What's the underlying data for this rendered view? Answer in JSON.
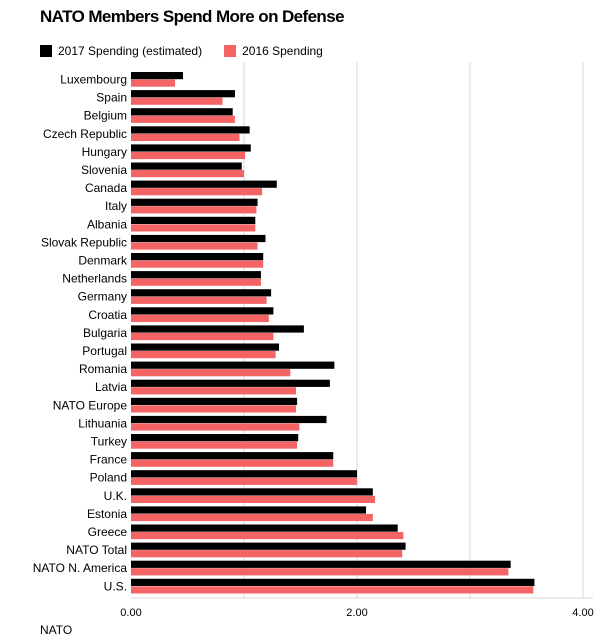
{
  "chart_data": {
    "type": "bar",
    "orientation": "horizontal",
    "title": "NATO Members Spend More on Defense",
    "source": "NATO",
    "xlim": [
      0,
      4.0
    ],
    "xticks": [
      0,
      2.0,
      4.0
    ],
    "xtick_labels": [
      "0.00",
      "2.00",
      "4.00"
    ],
    "grid": true,
    "legend_position": "top-left",
    "categories": [
      "Luxembourg",
      "Spain",
      "Belgium",
      "Czech Republic",
      "Hungary",
      "Slovenia",
      "Canada",
      "Italy",
      "Albania",
      "Slovak Republic",
      "Denmark",
      "Netherlands",
      "Germany",
      "Croatia",
      "Bulgaria",
      "Portugal",
      "Romania",
      "Latvia",
      "NATO Europe",
      "Lithuania",
      "Turkey",
      "France",
      "Poland",
      "U.K.",
      "Estonia",
      "Greece",
      "NATO Total",
      "NATO N. America",
      "U.S."
    ],
    "series": [
      {
        "name": "2017 Spending (estimated)",
        "color": "#000000",
        "values": [
          0.46,
          0.92,
          0.9,
          1.05,
          1.06,
          0.98,
          1.29,
          1.12,
          1.1,
          1.19,
          1.17,
          1.15,
          1.24,
          1.26,
          1.53,
          1.31,
          1.8,
          1.76,
          1.47,
          1.73,
          1.48,
          1.79,
          2.0,
          2.14,
          2.08,
          2.36,
          2.43,
          3.36,
          3.57
        ]
      },
      {
        "name": "2016 Spending",
        "color": "#f46464",
        "values": [
          0.39,
          0.81,
          0.92,
          0.96,
          1.01,
          1.0,
          1.16,
          1.11,
          1.1,
          1.12,
          1.17,
          1.15,
          1.2,
          1.22,
          1.26,
          1.28,
          1.41,
          1.46,
          1.46,
          1.49,
          1.47,
          1.79,
          2.0,
          2.16,
          2.14,
          2.41,
          2.4,
          3.34,
          3.56
        ]
      }
    ]
  }
}
